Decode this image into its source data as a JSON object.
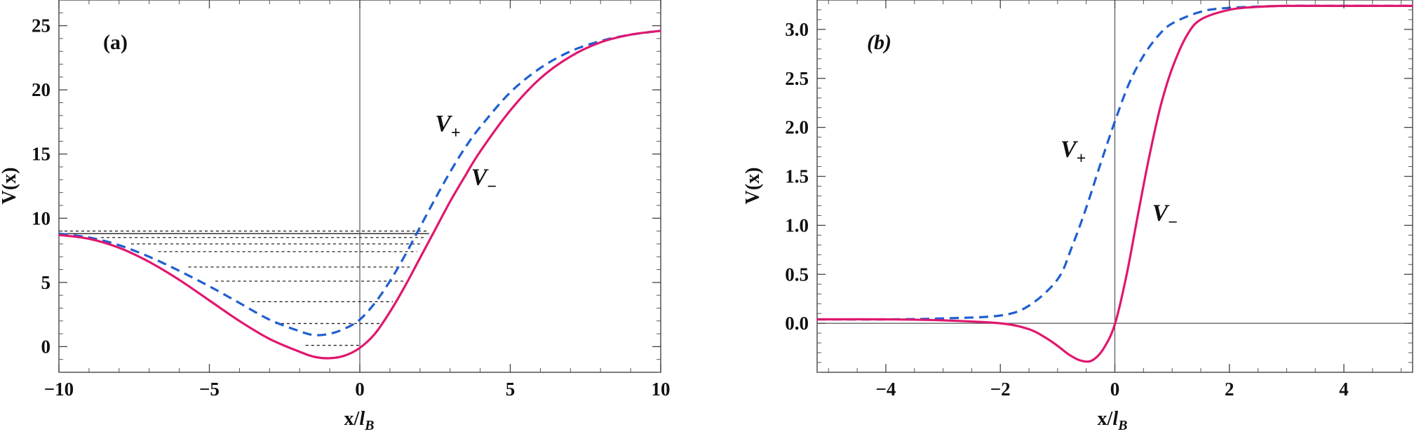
{
  "chart_data": [
    {
      "type": "line",
      "panel_label": "(a)",
      "xlabel": "x/l_B",
      "ylabel": "V(x)",
      "xlim": [
        -10,
        10
      ],
      "ylim": [
        -2,
        27
      ],
      "xticks": [
        -10,
        -5,
        0,
        5,
        10
      ],
      "xtick_labels": [
        "−10",
        "−5",
        "0",
        "5",
        "10"
      ],
      "yticks": [
        0,
        5,
        10,
        15,
        20,
        25
      ],
      "ytick_labels": [
        "0",
        "5",
        "10",
        "15",
        "20",
        "25"
      ],
      "grid": false,
      "colors": {
        "v_plus": "#1f5fd0",
        "v_minus": "#e0176e"
      },
      "series": [
        {
          "name": "V+",
          "style": "dashed",
          "x": [
            -10,
            -9,
            -8,
            -7,
            -6,
            -5,
            -4,
            -3,
            -2,
            -1.5,
            -1,
            -0.5,
            0,
            0.5,
            1,
            1.5,
            2,
            2.5,
            3,
            3.5,
            4,
            5,
            6,
            7,
            8,
            9,
            10
          ],
          "y": [
            8.8,
            8.5,
            7.9,
            7.0,
            5.9,
            4.7,
            3.4,
            2.1,
            1.2,
            0.9,
            1.0,
            1.4,
            2.1,
            3.4,
            5.1,
            7.1,
            9.3,
            11.5,
            13.6,
            15.5,
            17.1,
            19.8,
            21.7,
            23.0,
            23.8,
            24.3,
            24.6
          ]
        },
        {
          "name": "V−",
          "style": "solid",
          "x": [
            -10,
            -9,
            -8,
            -7,
            -6,
            -5,
            -4,
            -3,
            -2,
            -1.5,
            -1,
            -0.5,
            0,
            0.5,
            1,
            1.5,
            2,
            2.5,
            3,
            3.5,
            4,
            5,
            6,
            7,
            8,
            9,
            10
          ],
          "y": [
            8.7,
            8.4,
            7.7,
            6.6,
            5.2,
            3.6,
            2.0,
            0.6,
            -0.4,
            -0.8,
            -0.9,
            -0.7,
            -0.1,
            1.0,
            2.7,
            4.7,
            6.9,
            9.1,
            11.3,
            13.3,
            15.2,
            18.4,
            20.9,
            22.6,
            23.7,
            24.3,
            24.6
          ]
        }
      ],
      "levels": [
        {
          "y": 0.1,
          "x_start": -1.8,
          "x_end": 0
        },
        {
          "y": 1.8,
          "x_start": -2.8,
          "x_end": 0.7
        },
        {
          "y": 3.5,
          "x_start": -3.6,
          "x_end": 1.1
        },
        {
          "y": 5.1,
          "x_start": -4.8,
          "x_end": 1.5
        },
        {
          "y": 6.2,
          "x_start": -5.7,
          "x_end": 1.7
        },
        {
          "y": 7.4,
          "x_start": -6.7,
          "x_end": 1.9
        },
        {
          "y": 8.0,
          "x_start": -7.6,
          "x_end": 2.1
        },
        {
          "y": 8.5,
          "x_start": -8.6,
          "x_end": 2.2
        },
        {
          "y": 9.0,
          "x_start": -10.0,
          "x_end": 2.3
        }
      ],
      "reference_line": {
        "y": 8.8,
        "x_start": -10,
        "x_end": 2.3
      },
      "annotations": [
        {
          "text": "V",
          "sub": "+",
          "x": 2.5,
          "y": 16.8
        },
        {
          "text": "V",
          "sub": "−",
          "x": 3.7,
          "y": 12.6
        }
      ]
    },
    {
      "type": "line",
      "panel_label": "(b)",
      "xlabel": "x/l_B",
      "ylabel": "V(x)",
      "xlim": [
        -5.2,
        5.2
      ],
      "ylim": [
        -0.5,
        3.3
      ],
      "xticks": [
        -4,
        -2,
        0,
        2,
        4
      ],
      "xtick_labels": [
        "−4",
        "−2",
        "0",
        "2",
        "4"
      ],
      "yticks": [
        0,
        0.5,
        1.0,
        1.5,
        2.0,
        2.5,
        3.0
      ],
      "ytick_labels": [
        "0.0",
        "0.5",
        "1.0",
        "1.5",
        "2.0",
        "2.5",
        "3.0"
      ],
      "grid": false,
      "colors": {
        "v_plus": "#1f5fd0",
        "v_minus": "#e0176e"
      },
      "series": [
        {
          "name": "V+",
          "style": "dashed",
          "x": [
            -5.2,
            -4,
            -3,
            -2,
            -1.5,
            -1,
            -0.75,
            -0.5,
            -0.25,
            0,
            0.25,
            0.5,
            0.75,
            1,
            1.5,
            2,
            3,
            4,
            5.2
          ],
          "y": [
            0.04,
            0.04,
            0.05,
            0.08,
            0.18,
            0.45,
            0.78,
            1.18,
            1.63,
            2.06,
            2.45,
            2.73,
            2.93,
            3.06,
            3.18,
            3.22,
            3.24,
            3.24,
            3.24
          ]
        },
        {
          "name": "V−",
          "style": "solid",
          "x": [
            -5.2,
            -4,
            -3,
            -2,
            -1.5,
            -1.2,
            -1,
            -0.8,
            -0.6,
            -0.4,
            -0.2,
            0,
            0.2,
            0.4,
            0.6,
            0.8,
            1,
            1.25,
            1.5,
            2,
            2.5,
            3,
            4,
            5.2
          ],
          "y": [
            0.04,
            0.04,
            0.03,
            0.0,
            -0.06,
            -0.15,
            -0.23,
            -0.32,
            -0.38,
            -0.38,
            -0.26,
            -0.01,
            0.48,
            1.1,
            1.7,
            2.22,
            2.6,
            2.93,
            3.1,
            3.2,
            3.23,
            3.24,
            3.24,
            3.24
          ]
        }
      ],
      "annotations": [
        {
          "text": "V",
          "sub": "+",
          "x": -0.95,
          "y": 1.7
        },
        {
          "text": "V",
          "sub": "−",
          "x": 0.65,
          "y": 1.05
        }
      ]
    }
  ]
}
